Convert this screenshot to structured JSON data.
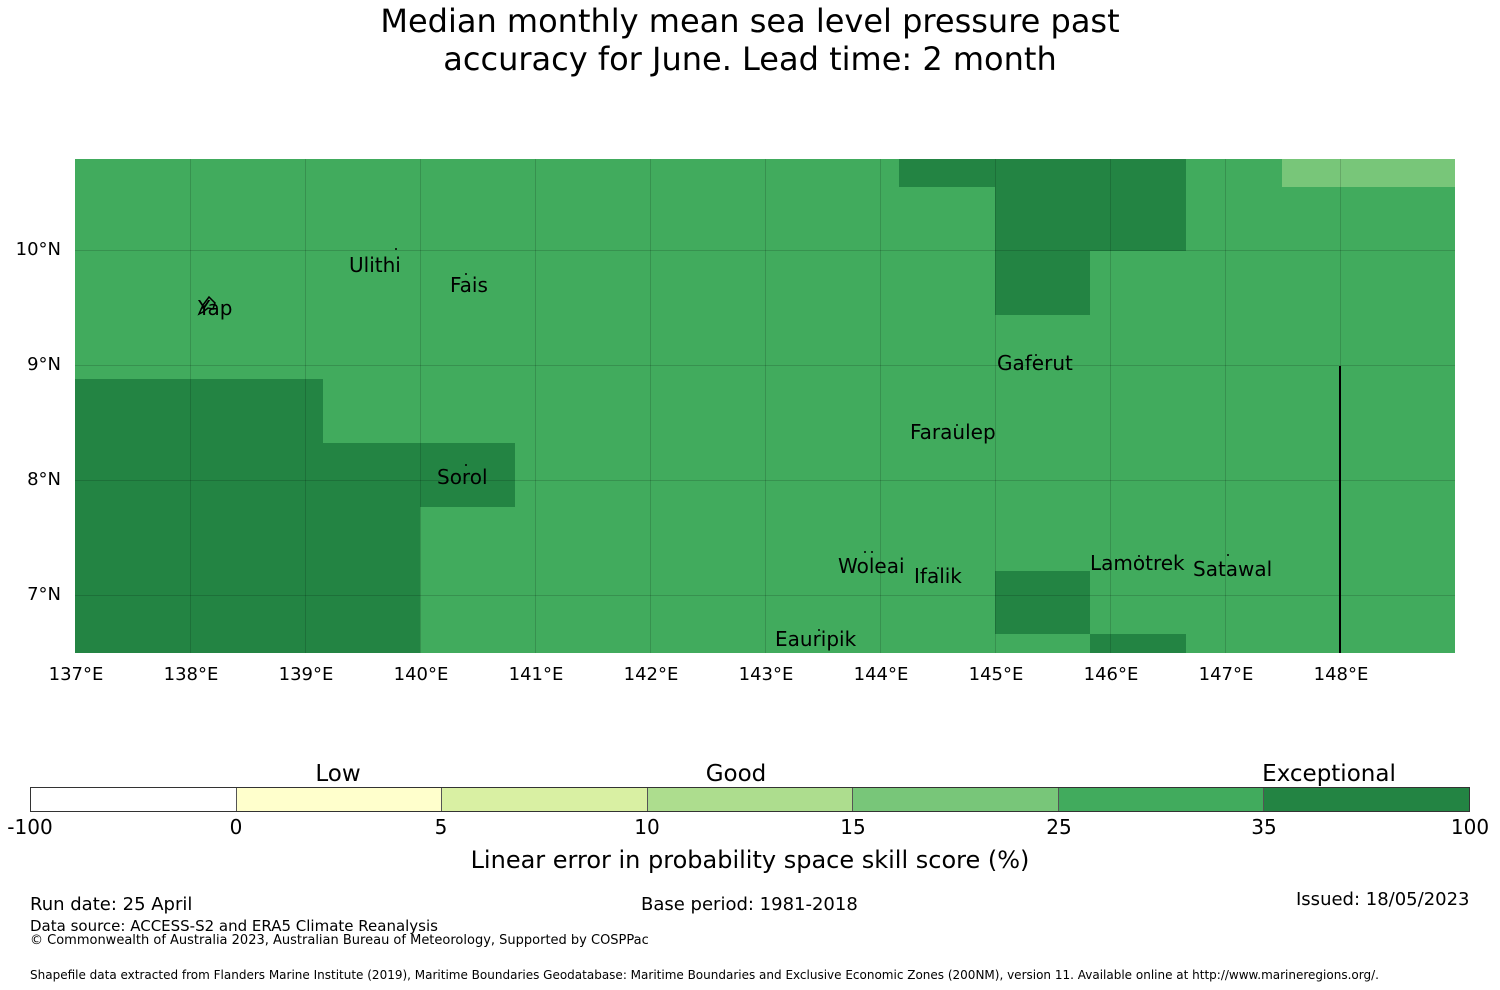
{
  "title_line1": "Median monthly mean sea level pressure past",
  "title_line2": "accuracy for June. Lead time: 2 month",
  "map": {
    "lat_labels": [
      "10°N",
      "9°N",
      "8°N",
      "7°N"
    ],
    "lon_labels": [
      "137°E",
      "138°E",
      "139°E",
      "140°E",
      "141°E",
      "142°E",
      "143°E",
      "144°E",
      "145°E",
      "146°E",
      "147°E",
      "148°E"
    ],
    "places": [
      "Ulithi",
      "Fais",
      "Yap",
      "Gaferut",
      "Faraulep",
      "Sorol",
      "Woleai",
      "Ifalik",
      "Lamotrek",
      "Satawal",
      "Eauripik"
    ],
    "background_color": "#41ab5d",
    "cell_colors": {
      "exceptional": "#238443",
      "good": "#78c679"
    }
  },
  "colorbar": {
    "categories": [
      "Low",
      "Good",
      "Exceptional"
    ],
    "ticks": [
      "-100",
      "0",
      "5",
      "10",
      "15",
      "25",
      "35",
      "100"
    ],
    "colors": [
      "#ffffff",
      "#ffffcc",
      "#d9f0a3",
      "#addd8e",
      "#78c679",
      "#41ab5d",
      "#238443"
    ],
    "label": "Linear error in probability space skill score (%)"
  },
  "footer": {
    "run_date": "Run date: 25 April",
    "base_period": "Base period: 1981-2018",
    "issued": "Issued: 18/05/2023",
    "data_source": "Data source: ACCESS-S2 and ERA5 Climate Reanalysis",
    "copyright": "© Commonwealth of Australia 2023, Australian Bureau of Meteorology, Supported by COSPPac",
    "shapefile": "Shapefile data extracted from Flanders Marine Institute (2019), Maritime Boundaries Geodatabase: Maritime Boundaries and Exclusive Economic Zones (200NM), version 11. Available online at http://www.marineregions.org/."
  }
}
